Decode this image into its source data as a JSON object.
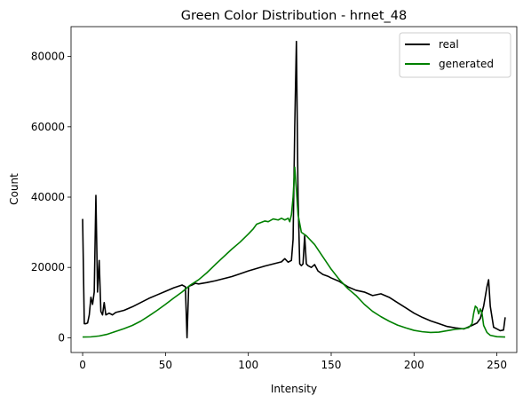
{
  "chart_data": {
    "type": "line",
    "title": "Green Color Distribution - hrnet_48",
    "xlabel": "Intensity",
    "ylabel": "Count",
    "xlim": [
      -7,
      262
    ],
    "ylim": [
      -4200,
      88500
    ],
    "xticks": [
      0,
      50,
      100,
      150,
      200,
      250
    ],
    "yticks": [
      0,
      20000,
      40000,
      60000,
      80000
    ],
    "ytick_labels": [
      "0",
      "20000",
      "40000",
      "60000",
      "80000"
    ],
    "legend_position": "top-right",
    "grid": false,
    "series": [
      {
        "name": "real",
        "color": "#000000",
        "points": [
          [
            0,
            33800
          ],
          [
            1,
            4000
          ],
          [
            2,
            4000
          ],
          [
            3,
            4200
          ],
          [
            4,
            6500
          ],
          [
            5,
            11500
          ],
          [
            6,
            9500
          ],
          [
            7,
            13000
          ],
          [
            8,
            40500
          ],
          [
            9,
            13000
          ],
          [
            10,
            22000
          ],
          [
            11,
            7500
          ],
          [
            12,
            6500
          ],
          [
            13,
            10000
          ],
          [
            14,
            6500
          ],
          [
            16,
            7000
          ],
          [
            18,
            6500
          ],
          [
            20,
            7200
          ],
          [
            25,
            7800
          ],
          [
            30,
            8800
          ],
          [
            35,
            10000
          ],
          [
            40,
            11200
          ],
          [
            45,
            12200
          ],
          [
            50,
            13200
          ],
          [
            55,
            14200
          ],
          [
            60,
            15000
          ],
          [
            62,
            14500
          ],
          [
            63,
            0
          ],
          [
            64,
            14600
          ],
          [
            66,
            15000
          ],
          [
            68,
            15500
          ],
          [
            70,
            15300
          ],
          [
            75,
            15700
          ],
          [
            80,
            16200
          ],
          [
            85,
            16800
          ],
          [
            90,
            17400
          ],
          [
            95,
            18200
          ],
          [
            100,
            19000
          ],
          [
            105,
            19700
          ],
          [
            110,
            20400
          ],
          [
            115,
            21000
          ],
          [
            120,
            21600
          ],
          [
            122,
            22500
          ],
          [
            124,
            21500
          ],
          [
            126,
            22000
          ],
          [
            127,
            28000
          ],
          [
            128,
            60000
          ],
          [
            129,
            84300
          ],
          [
            130,
            40000
          ],
          [
            131,
            21000
          ],
          [
            132,
            20500
          ],
          [
            133,
            21000
          ],
          [
            134,
            29000
          ],
          [
            135,
            21000
          ],
          [
            136,
            20500
          ],
          [
            138,
            20000
          ],
          [
            140,
            20800
          ],
          [
            142,
            19000
          ],
          [
            145,
            18000
          ],
          [
            148,
            17500
          ],
          [
            150,
            17000
          ],
          [
            155,
            16000
          ],
          [
            160,
            14500
          ],
          [
            165,
            13500
          ],
          [
            170,
            13000
          ],
          [
            175,
            12000
          ],
          [
            180,
            12500
          ],
          [
            185,
            11500
          ],
          [
            190,
            10000
          ],
          [
            195,
            8500
          ],
          [
            200,
            7000
          ],
          [
            205,
            5800
          ],
          [
            210,
            4800
          ],
          [
            215,
            4000
          ],
          [
            220,
            3200
          ],
          [
            225,
            2800
          ],
          [
            230,
            2500
          ],
          [
            235,
            3500
          ],
          [
            238,
            4200
          ],
          [
            240,
            5500
          ],
          [
            242,
            9000
          ],
          [
            244,
            14500
          ],
          [
            245,
            16500
          ],
          [
            246,
            9000
          ],
          [
            248,
            3000
          ],
          [
            250,
            2500
          ],
          [
            252,
            2000
          ],
          [
            254,
            2200
          ],
          [
            255,
            5800
          ]
        ]
      },
      {
        "name": "generated",
        "color": "#008000",
        "points": [
          [
            0,
            200
          ],
          [
            5,
            250
          ],
          [
            10,
            500
          ],
          [
            15,
            1000
          ],
          [
            20,
            1800
          ],
          [
            25,
            2600
          ],
          [
            30,
            3500
          ],
          [
            35,
            4700
          ],
          [
            40,
            6200
          ],
          [
            45,
            7800
          ],
          [
            50,
            9500
          ],
          [
            55,
            11300
          ],
          [
            60,
            13000
          ],
          [
            63,
            14200
          ],
          [
            65,
            15000
          ],
          [
            70,
            16500
          ],
          [
            75,
            18500
          ],
          [
            80,
            20800
          ],
          [
            85,
            23000
          ],
          [
            90,
            25200
          ],
          [
            95,
            27200
          ],
          [
            100,
            29500
          ],
          [
            103,
            31000
          ],
          [
            105,
            32300
          ],
          [
            110,
            33200
          ],
          [
            112,
            33000
          ],
          [
            115,
            33800
          ],
          [
            118,
            33500
          ],
          [
            120,
            34000
          ],
          [
            122,
            33500
          ],
          [
            124,
            34000
          ],
          [
            125,
            33000
          ],
          [
            126,
            35000
          ],
          [
            127,
            40000
          ],
          [
            128,
            48500
          ],
          [
            129,
            42000
          ],
          [
            130,
            35000
          ],
          [
            132,
            30000
          ],
          [
            135,
            29000
          ],
          [
            140,
            26500
          ],
          [
            145,
            23000
          ],
          [
            150,
            19500
          ],
          [
            155,
            16500
          ],
          [
            160,
            14000
          ],
          [
            165,
            12000
          ],
          [
            170,
            9500
          ],
          [
            175,
            7500
          ],
          [
            180,
            6000
          ],
          [
            185,
            4700
          ],
          [
            190,
            3600
          ],
          [
            195,
            2800
          ],
          [
            200,
            2100
          ],
          [
            205,
            1700
          ],
          [
            210,
            1500
          ],
          [
            215,
            1600
          ],
          [
            220,
            2000
          ],
          [
            225,
            2400
          ],
          [
            230,
            2600
          ],
          [
            233,
            2900
          ],
          [
            235,
            4000
          ],
          [
            236,
            7000
          ],
          [
            237,
            9000
          ],
          [
            238,
            8500
          ],
          [
            239,
            6800
          ],
          [
            240,
            8200
          ],
          [
            241,
            7000
          ],
          [
            242,
            3500
          ],
          [
            244,
            1500
          ],
          [
            246,
            700
          ],
          [
            250,
            300
          ],
          [
            255,
            200
          ]
        ]
      }
    ]
  }
}
